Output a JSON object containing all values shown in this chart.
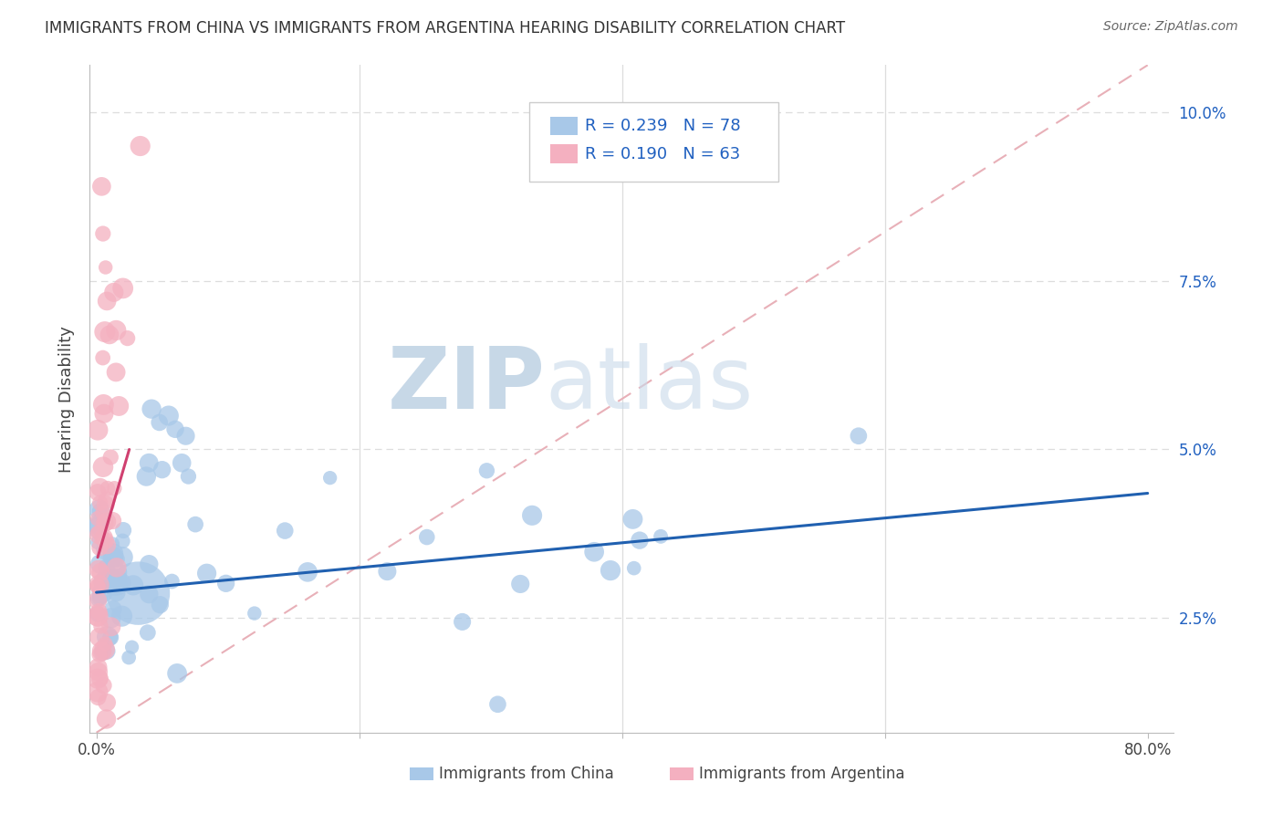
{
  "title": "IMMIGRANTS FROM CHINA VS IMMIGRANTS FROM ARGENTINA HEARING DISABILITY CORRELATION CHART",
  "source": "Source: ZipAtlas.com",
  "ylabel": "Hearing Disability",
  "china_color": "#a8c8e8",
  "china_edge_color": "#a8c8e8",
  "china_line_color": "#2060b0",
  "arg_color": "#f4b0c0",
  "arg_edge_color": "#f4b0c0",
  "arg_line_color": "#d04070",
  "diag_color": "#e8b0b8",
  "legend_text_color": "#2060c0",
  "grid_color": "#dddddd",
  "watermark_color": "#ccd8e8",
  "legend_china_label": "R = 0.239   N = 78",
  "legend_arg_label": "R = 0.190   N = 63",
  "bottom_legend_china": "Immigrants from China",
  "bottom_legend_arg": "Immigrants from Argentina"
}
